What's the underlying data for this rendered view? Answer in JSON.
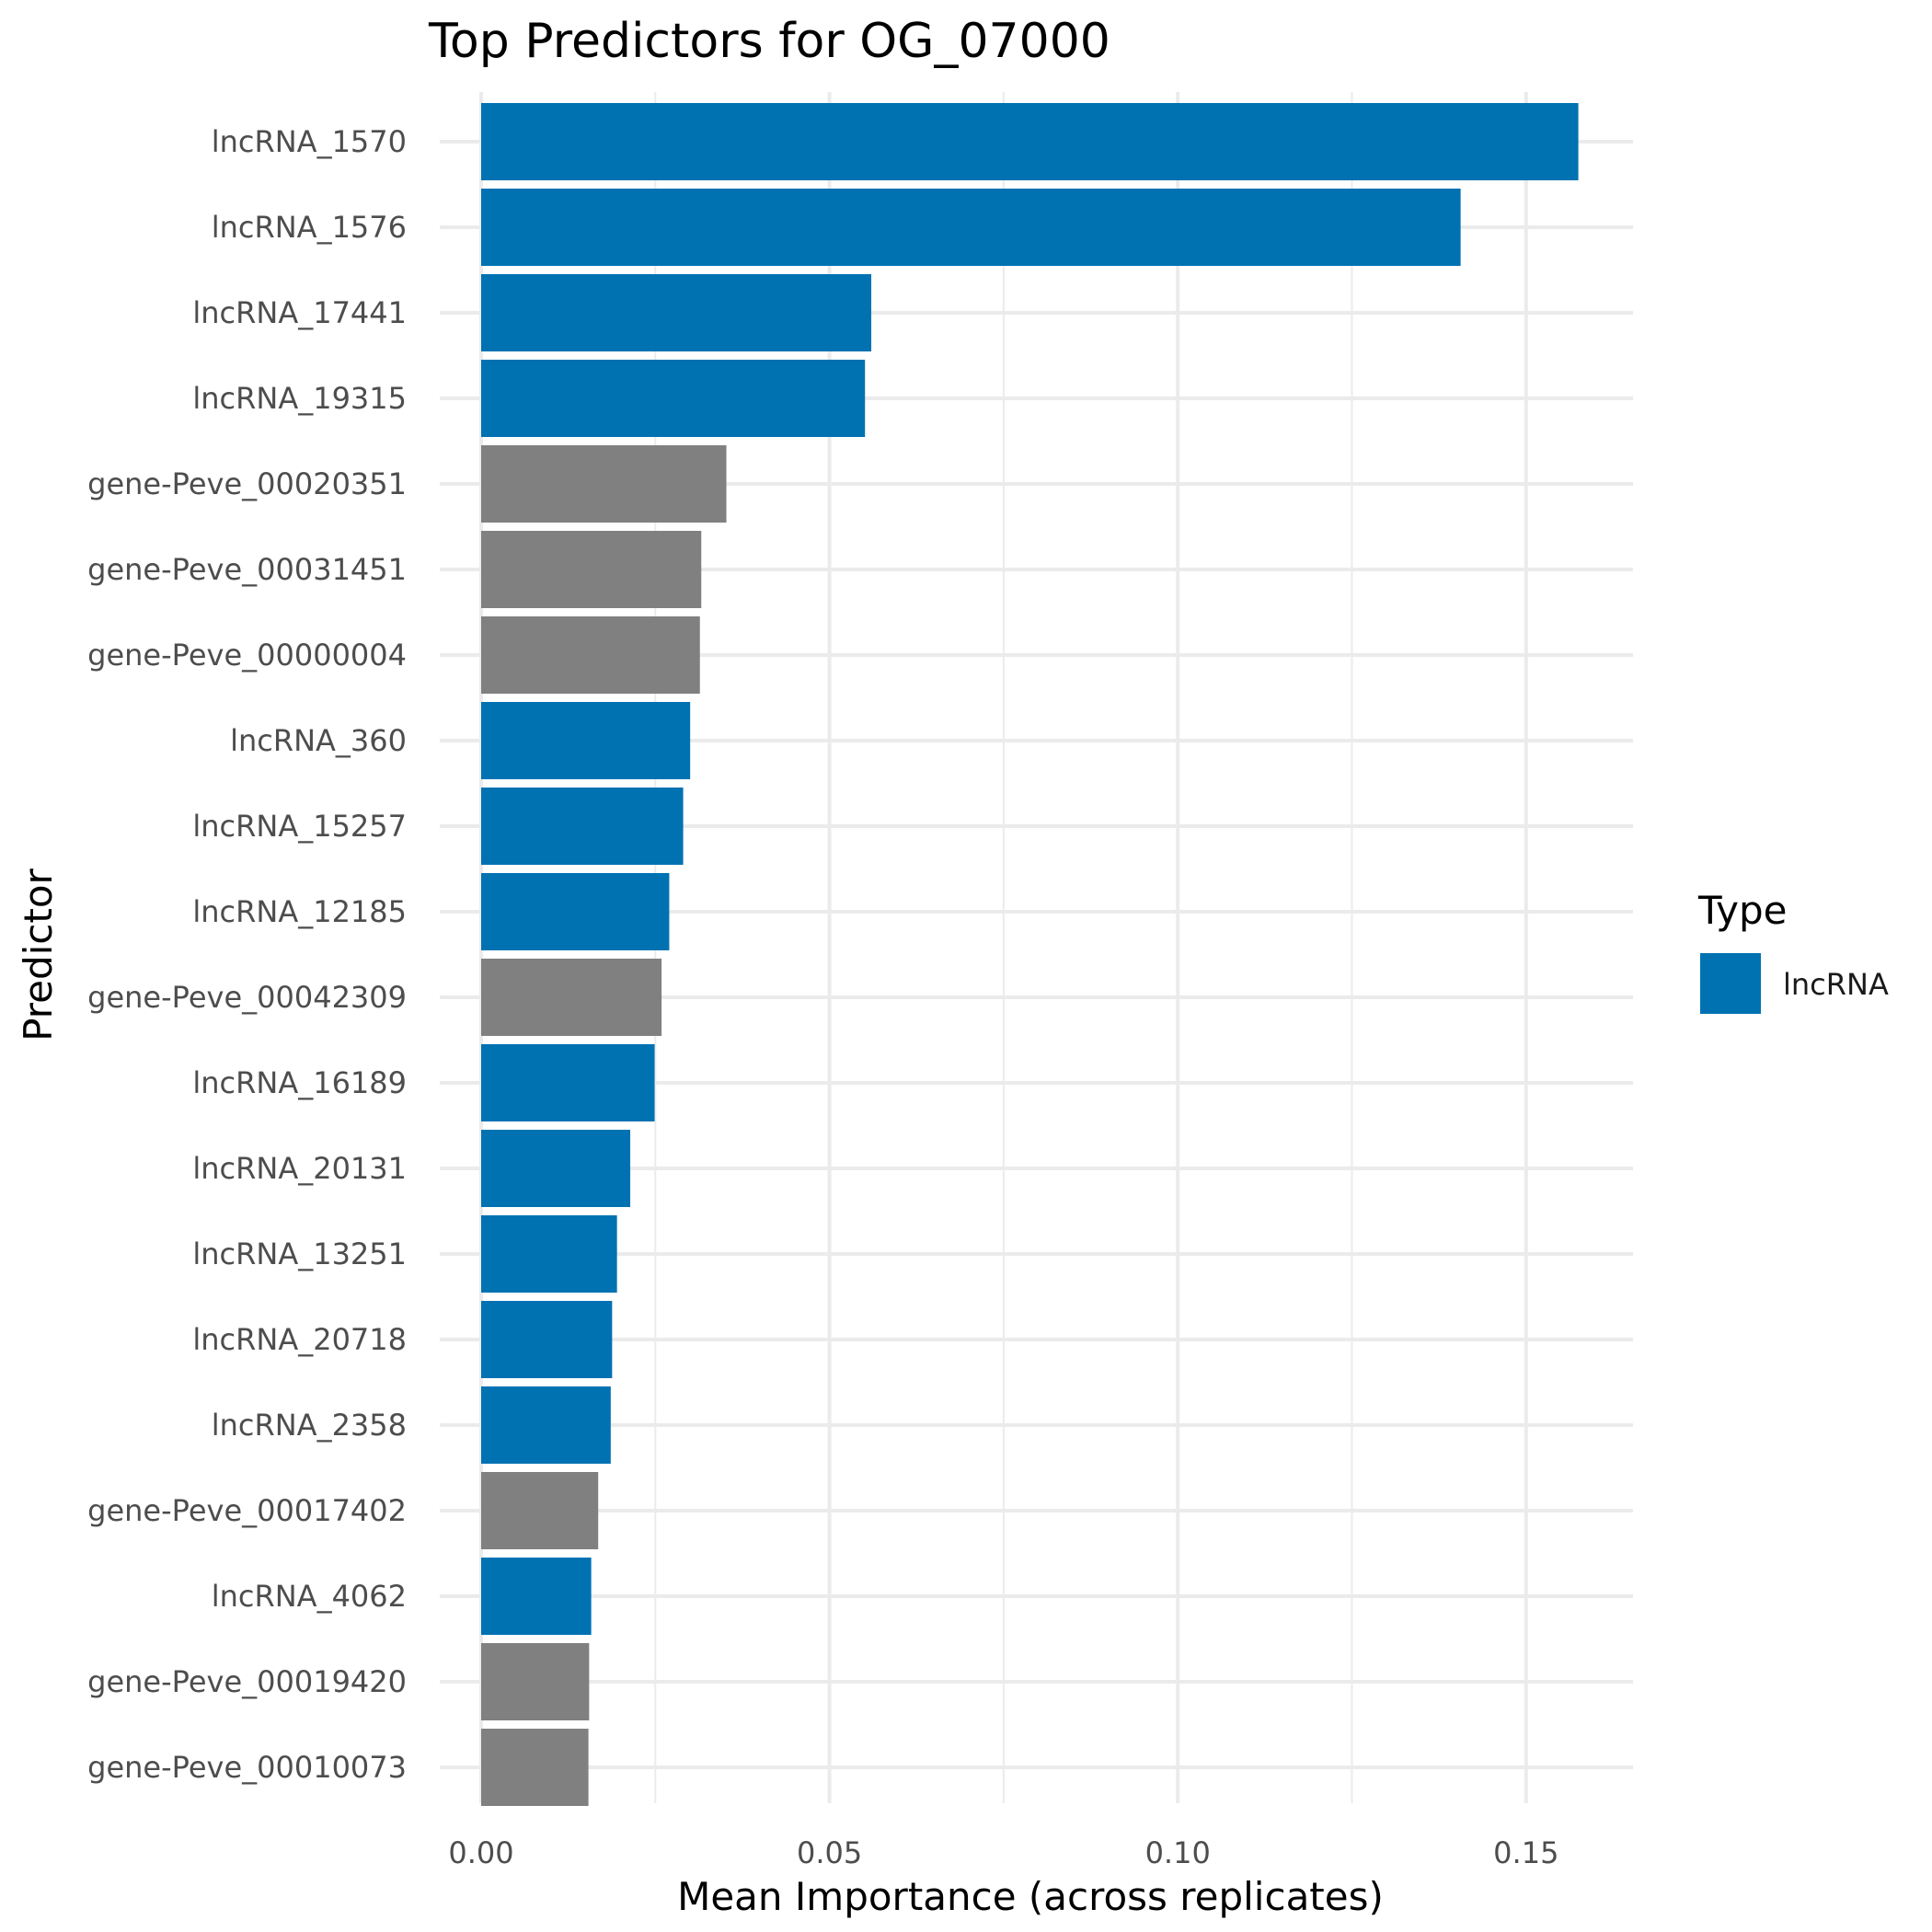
{
  "chart_data": {
    "type": "bar",
    "orientation": "horizontal",
    "title": "Top Predictors for OG_07000",
    "xlabel": "Mean Importance (across replicates)",
    "ylabel": "Predictor",
    "xlim": [
      0,
      0.165
    ],
    "x_ticks": [
      0.0,
      0.05,
      0.1,
      0.15
    ],
    "x_tick_labels": [
      "0.00",
      "0.05",
      "0.10",
      "0.15"
    ],
    "grid": true,
    "legend": {
      "title": "Type",
      "position": "right",
      "entries": [
        {
          "label": "lncRNA",
          "color": "#0072B2"
        }
      ]
    },
    "colors": {
      "lncRNA": "#0072B2",
      "gene": "#808080"
    },
    "categories": [
      "lncRNA_1570",
      "lncRNA_1576",
      "lncRNA_17441",
      "lncRNA_19315",
      "gene-Peve_00020351",
      "gene-Peve_00031451",
      "gene-Peve_00000004",
      "lncRNA_360",
      "lncRNA_15257",
      "lncRNA_12185",
      "gene-Peve_00042309",
      "lncRNA_16189",
      "lncRNA_20131",
      "lncRNA_13251",
      "lncRNA_20718",
      "lncRNA_2358",
      "gene-Peve_00017402",
      "lncRNA_4062",
      "gene-Peve_00019420",
      "gene-Peve_00010073"
    ],
    "values": [
      0.1575,
      0.1406,
      0.056,
      0.0551,
      0.0352,
      0.0316,
      0.0314,
      0.03,
      0.029,
      0.027,
      0.0259,
      0.0249,
      0.0214,
      0.0195,
      0.0188,
      0.0186,
      0.0168,
      0.0158,
      0.0155,
      0.0154
    ],
    "types": [
      "lncRNA",
      "lncRNA",
      "lncRNA",
      "lncRNA",
      "gene",
      "gene",
      "gene",
      "lncRNA",
      "lncRNA",
      "lncRNA",
      "gene",
      "lncRNA",
      "lncRNA",
      "lncRNA",
      "lncRNA",
      "lncRNA",
      "gene",
      "lncRNA",
      "gene",
      "gene"
    ]
  }
}
